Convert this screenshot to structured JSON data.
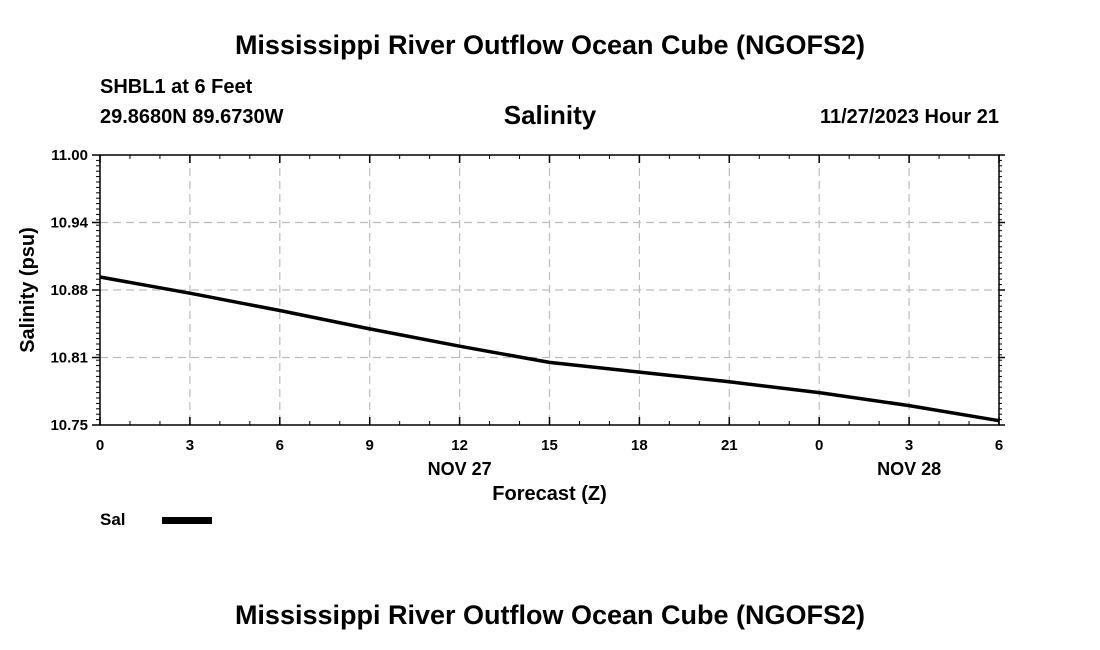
{
  "header": {
    "title": "Mississippi River Outflow Ocean Cube (NGOFS2)",
    "station": "SHBL1 at 6 Feet",
    "coordinates": "29.8680N  89.6730W",
    "variable": "Salinity",
    "datetime": "11/27/2023 Hour 21"
  },
  "footer": {
    "title": "Mississippi River Outflow Ocean Cube (NGOFS2)"
  },
  "legend": {
    "label": "Sal"
  },
  "chart_data": {
    "type": "line",
    "title": "Salinity",
    "xlabel": "Forecast (Z)",
    "ylabel": "Salinity (psu)",
    "x_tick_labels": [
      "0",
      "3",
      "6",
      "9",
      "12",
      "15",
      "18",
      "21",
      "0",
      "3",
      "6"
    ],
    "date_labels": [
      {
        "label": "NOV 27",
        "x": 12
      },
      {
        "label": "NOV 28",
        "x": 27
      }
    ],
    "xlim": [
      0,
      30
    ],
    "ylim": [
      10.75,
      11.0
    ],
    "y_ticks": [
      "10.75",
      "10.81",
      "10.88",
      "10.94",
      "11.00"
    ],
    "grid": true,
    "legend_position": "bottom-left",
    "series": [
      {
        "name": "Sal",
        "color": "#000000",
        "x": [
          0,
          3,
          6,
          9,
          12,
          15,
          18,
          21,
          24,
          27,
          30
        ],
        "values": [
          10.887,
          10.872,
          10.856,
          10.839,
          10.823,
          10.808,
          10.799,
          10.79,
          10.78,
          10.768,
          10.754
        ]
      }
    ]
  }
}
